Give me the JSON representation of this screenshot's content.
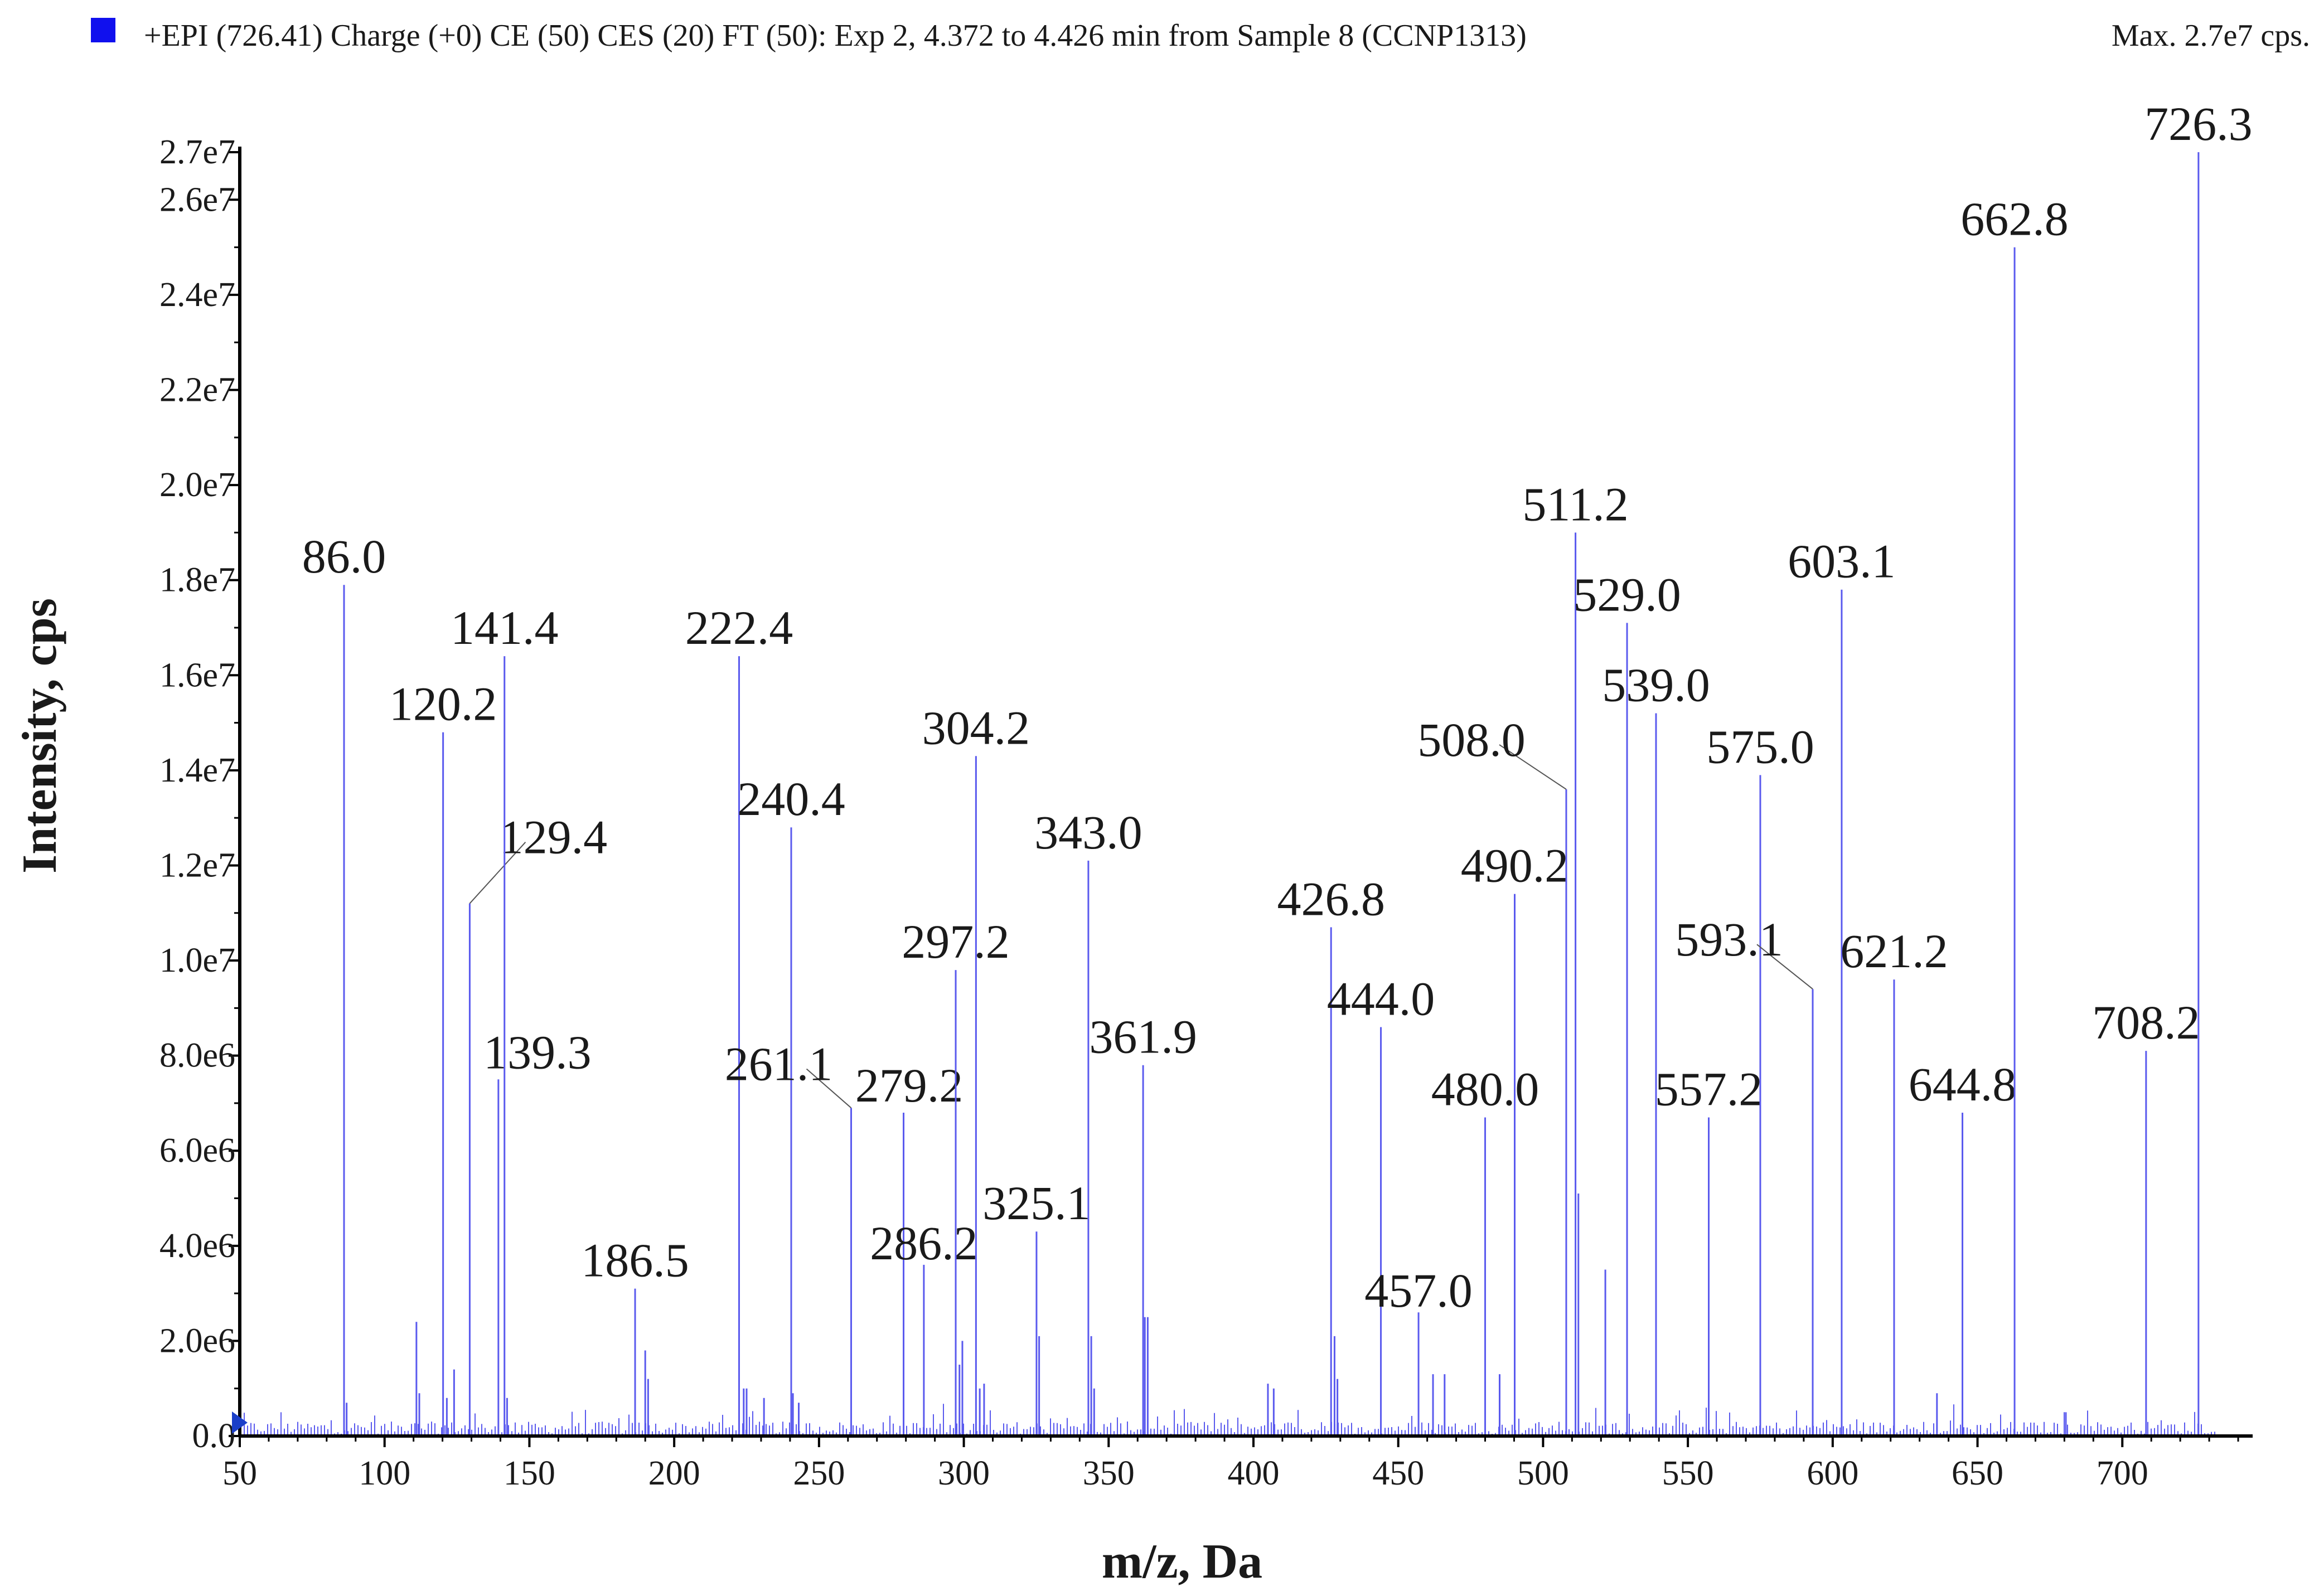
{
  "header": {
    "trace_label": "+EPI (726.41) Charge (+0) CE (50) CES (20) FT (50): Exp 2, 4.372 to 4.426 min from Sample 8 (CCNP1313)",
    "max_label": "Max. 2.7e7 cps.",
    "legend_color": "#1010ee"
  },
  "colors": {
    "spectrum": "#5a5aee",
    "axis": "#000000",
    "marker": "#1a3fc8"
  },
  "chart_data": {
    "type": "bar",
    "title": "+EPI (726.41) Charge (+0) CE (50) CES (20) FT (50): Exp 2, 4.372 to 4.426 min from Sample 8 (CCNP1313)",
    "xlabel": "m/z, Da",
    "ylabel": "Intensity, cps",
    "xlim": [
      50,
      745
    ],
    "ylim": [
      0,
      27000000
    ],
    "x_ticks": [
      50,
      100,
      150,
      200,
      250,
      300,
      350,
      400,
      450,
      500,
      550,
      600,
      650,
      700
    ],
    "y_ticks": [
      {
        "value": 0,
        "label": "0.0"
      },
      {
        "value": 2000000,
        "label": "2.0e6"
      },
      {
        "value": 4000000,
        "label": "4.0e6"
      },
      {
        "value": 6000000,
        "label": "6.0e6"
      },
      {
        "value": 8000000,
        "label": "8.0e6"
      },
      {
        "value": 10000000,
        "label": "1.0e7"
      },
      {
        "value": 12000000,
        "label": "1.2e7"
      },
      {
        "value": 14000000,
        "label": "1.4e7"
      },
      {
        "value": 16000000,
        "label": "1.6e7"
      },
      {
        "value": 18000000,
        "label": "1.8e7"
      },
      {
        "value": 20000000,
        "label": "2.0e7"
      },
      {
        "value": 22000000,
        "label": "2.2e7"
      },
      {
        "value": 24000000,
        "label": "2.4e7"
      },
      {
        "value": 26000000,
        "label": "2.6e7"
      },
      {
        "value": 27000000,
        "label": "2.7e7"
      }
    ],
    "labeled_peaks": [
      {
        "mz": 86.0,
        "intensity": 17900000,
        "label": "86.0"
      },
      {
        "mz": 120.2,
        "intensity": 14800000,
        "label": "120.2"
      },
      {
        "mz": 129.4,
        "intensity": 11200000,
        "label": "129.4"
      },
      {
        "mz": 139.3,
        "intensity": 7500000,
        "label": "139.3"
      },
      {
        "mz": 141.4,
        "intensity": 16400000,
        "label": "141.4"
      },
      {
        "mz": 186.5,
        "intensity": 3100000,
        "label": "186.5"
      },
      {
        "mz": 222.4,
        "intensity": 16400000,
        "label": "222.4"
      },
      {
        "mz": 240.4,
        "intensity": 12800000,
        "label": "240.4"
      },
      {
        "mz": 261.1,
        "intensity": 6900000,
        "label": "261.1"
      },
      {
        "mz": 279.2,
        "intensity": 6800000,
        "label": "279.2"
      },
      {
        "mz": 286.2,
        "intensity": 3600000,
        "label": "286.2"
      },
      {
        "mz": 297.2,
        "intensity": 9800000,
        "label": "297.2"
      },
      {
        "mz": 304.2,
        "intensity": 14300000,
        "label": "304.2"
      },
      {
        "mz": 325.1,
        "intensity": 4300000,
        "label": "325.1"
      },
      {
        "mz": 343.0,
        "intensity": 12100000,
        "label": "343.0"
      },
      {
        "mz": 361.9,
        "intensity": 7800000,
        "label": "361.9"
      },
      {
        "mz": 426.8,
        "intensity": 10700000,
        "label": "426.8"
      },
      {
        "mz": 444.0,
        "intensity": 8600000,
        "label": "444.0"
      },
      {
        "mz": 457.0,
        "intensity": 2600000,
        "label": "457.0"
      },
      {
        "mz": 480.0,
        "intensity": 6700000,
        "label": "480.0"
      },
      {
        "mz": 490.2,
        "intensity": 11400000,
        "label": "490.2"
      },
      {
        "mz": 508.0,
        "intensity": 13600000,
        "label": "508.0"
      },
      {
        "mz": 511.2,
        "intensity": 19000000,
        "label": "511.2"
      },
      {
        "mz": 529.0,
        "intensity": 17100000,
        "label": "529.0"
      },
      {
        "mz": 539.0,
        "intensity": 15200000,
        "label": "539.0"
      },
      {
        "mz": 557.2,
        "intensity": 6700000,
        "label": "557.2"
      },
      {
        "mz": 575.0,
        "intensity": 13900000,
        "label": "575.0"
      },
      {
        "mz": 593.1,
        "intensity": 9400000,
        "label": "593.1"
      },
      {
        "mz": 603.1,
        "intensity": 17800000,
        "label": "603.1"
      },
      {
        "mz": 621.2,
        "intensity": 9600000,
        "label": "621.2"
      },
      {
        "mz": 644.8,
        "intensity": 6800000,
        "label": "644.8"
      },
      {
        "mz": 662.8,
        "intensity": 25000000,
        "label": "662.8"
      },
      {
        "mz": 708.2,
        "intensity": 8100000,
        "label": "708.2"
      },
      {
        "mz": 726.3,
        "intensity": 27000000,
        "label": "726.3"
      }
    ],
    "minor_peaks": [
      {
        "mz": 86.9,
        "intensity": 700000
      },
      {
        "mz": 111.0,
        "intensity": 2400000
      },
      {
        "mz": 112.0,
        "intensity": 900000
      },
      {
        "mz": 121.5,
        "intensity": 800000
      },
      {
        "mz": 124.0,
        "intensity": 1400000
      },
      {
        "mz": 142.3,
        "intensity": 800000
      },
      {
        "mz": 190.0,
        "intensity": 1800000
      },
      {
        "mz": 191.0,
        "intensity": 1200000
      },
      {
        "mz": 224.0,
        "intensity": 1000000
      },
      {
        "mz": 225.0,
        "intensity": 1000000
      },
      {
        "mz": 231.0,
        "intensity": 800000
      },
      {
        "mz": 241.0,
        "intensity": 900000
      },
      {
        "mz": 243.0,
        "intensity": 700000
      },
      {
        "mz": 298.5,
        "intensity": 1500000
      },
      {
        "mz": 299.5,
        "intensity": 2000000
      },
      {
        "mz": 305.5,
        "intensity": 1000000
      },
      {
        "mz": 307.0,
        "intensity": 1100000
      },
      {
        "mz": 326.0,
        "intensity": 2100000
      },
      {
        "mz": 344.0,
        "intensity": 2100000
      },
      {
        "mz": 345.0,
        "intensity": 1000000
      },
      {
        "mz": 362.5,
        "intensity": 2500000
      },
      {
        "mz": 363.5,
        "intensity": 2500000
      },
      {
        "mz": 405.0,
        "intensity": 1100000
      },
      {
        "mz": 407.0,
        "intensity": 1000000
      },
      {
        "mz": 428.0,
        "intensity": 2100000
      },
      {
        "mz": 429.0,
        "intensity": 1200000
      },
      {
        "mz": 462.0,
        "intensity": 1300000
      },
      {
        "mz": 466.0,
        "intensity": 1300000
      },
      {
        "mz": 485.0,
        "intensity": 1300000
      },
      {
        "mz": 512.2,
        "intensity": 5100000
      },
      {
        "mz": 521.5,
        "intensity": 3500000
      },
      {
        "mz": 636.0,
        "intensity": 900000
      },
      {
        "mz": 680.5,
        "intensity": 500000
      }
    ],
    "annotations": [
      "precursor marker at m/z 50 on the x axis"
    ]
  }
}
